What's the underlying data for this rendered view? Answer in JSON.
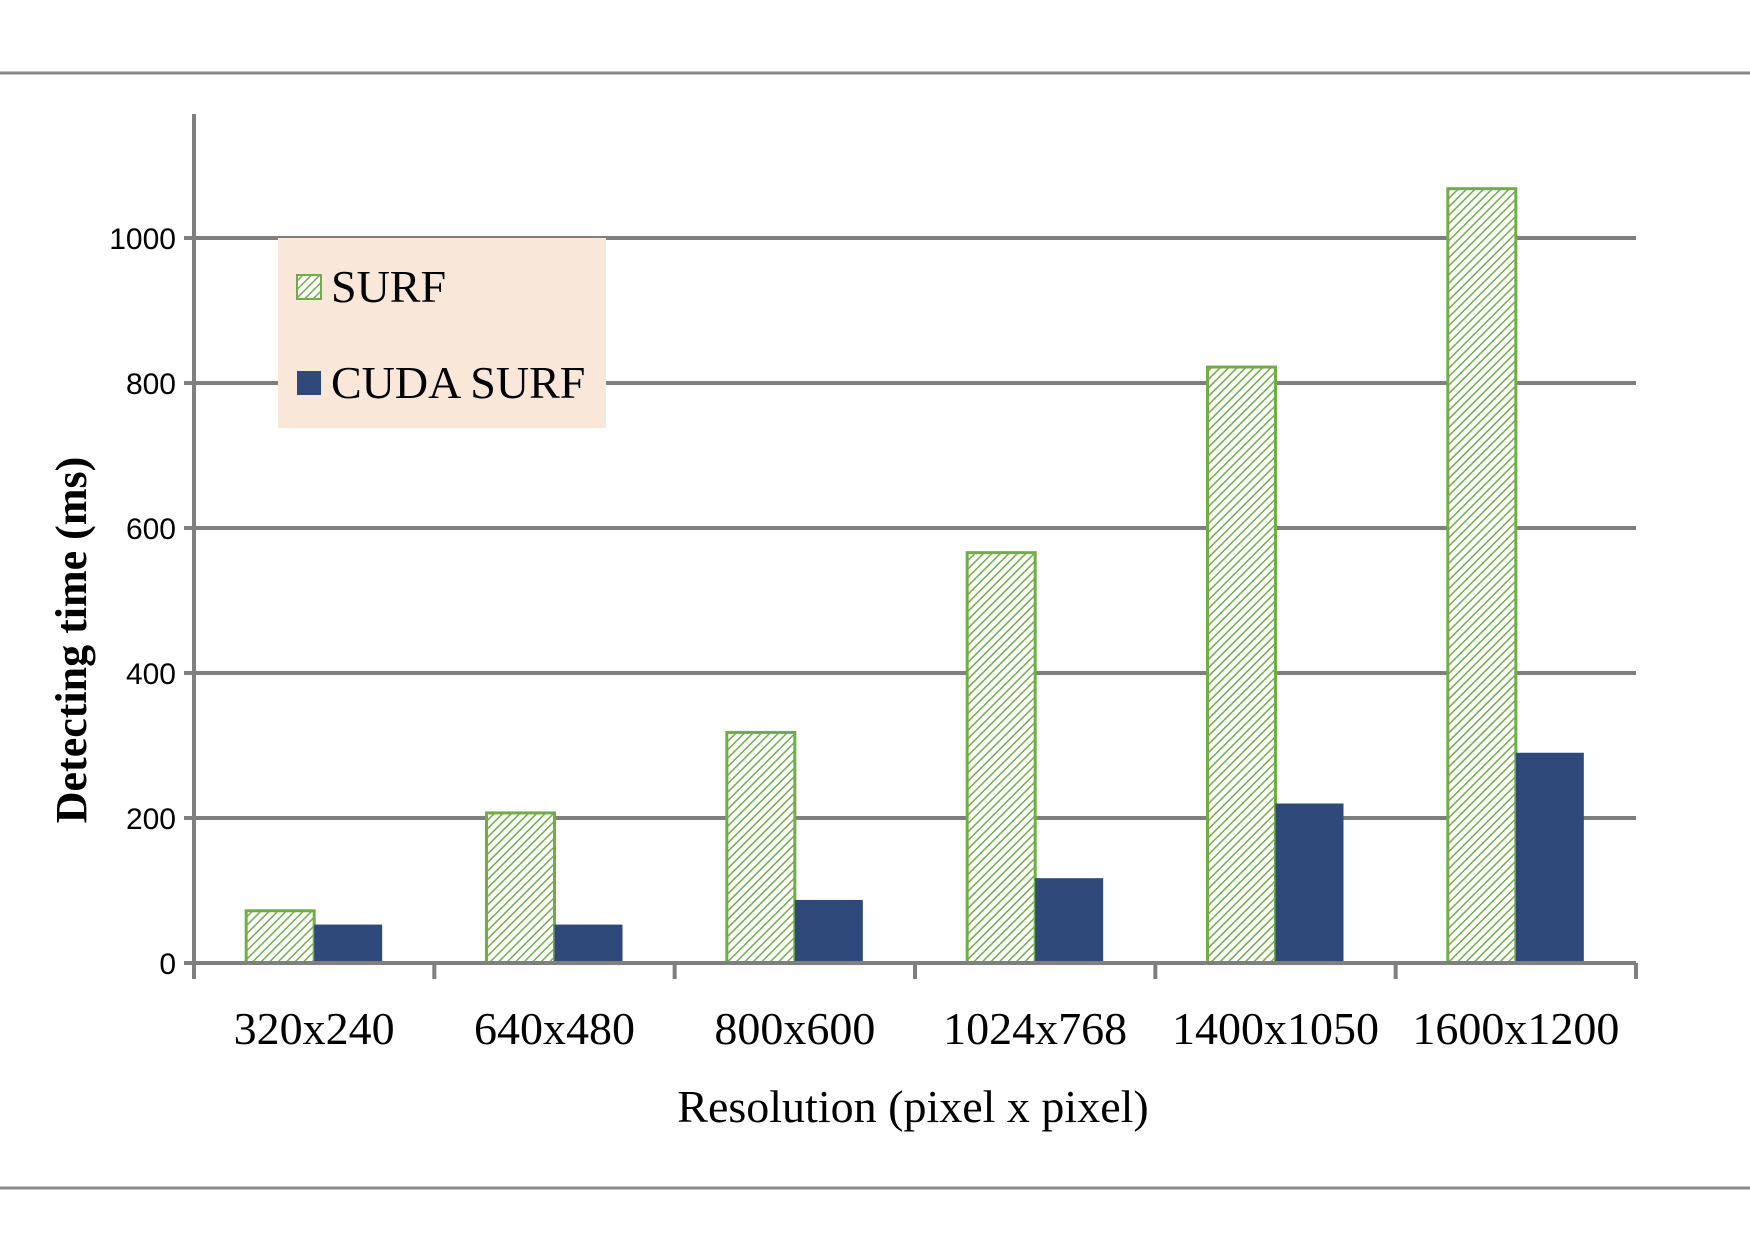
{
  "chart_data": {
    "type": "bar",
    "categories": [
      "320x240",
      "640x480",
      "800x600",
      "1024x768",
      "1400x1050",
      "1600x1200"
    ],
    "series": [
      {
        "name": "SURF",
        "values": [
          72,
          207,
          318,
          566,
          822,
          1068
        ]
      },
      {
        "name": "CUDA SURF",
        "values": [
          53,
          53,
          87,
          117,
          220,
          290
        ]
      }
    ],
    "title": "",
    "xlabel": "Resolution (pixel x pixel)",
    "ylabel": "Detecting time (ms)",
    "ylim": [
      0,
      1000
    ],
    "yticks": [
      0,
      200,
      400,
      600,
      800,
      1000
    ],
    "grid": true,
    "legend": "top-left",
    "colors": {
      "surf_stroke": "#70ad47",
      "surf_hatch": "#70ad47",
      "cuda_fill": "#2f4a7a",
      "grid": "#7f7f7f",
      "legend_bg": "#f9e7da",
      "frame_line": "#7f7f7f"
    }
  }
}
